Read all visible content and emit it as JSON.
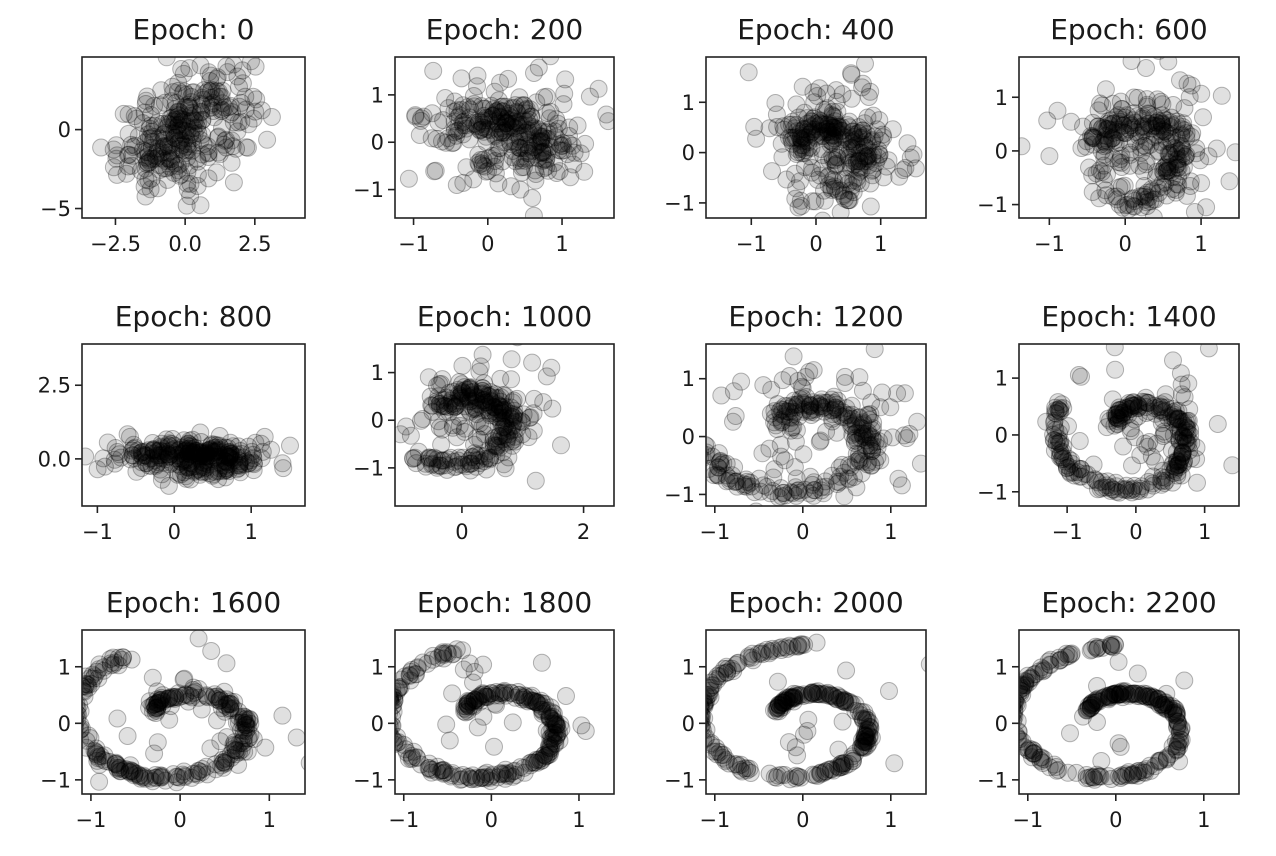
{
  "figure": {
    "marker_color": "#000000",
    "marker_alpha": 0.12
  },
  "chart_data": [
    {
      "type": "scatter",
      "title": "Epoch: 0",
      "xlim": [
        -3.7,
        4.3
      ],
      "ylim": [
        -5.6,
        4.6
      ],
      "xticks": [
        -2.5,
        0.0,
        2.5
      ],
      "xtick_labels": [
        "−2.5",
        "0.0",
        "2.5"
      ],
      "yticks": [
        -5,
        0
      ],
      "ytick_labels": [
        "−5",
        "0"
      ],
      "distribution": {
        "shape": "gaussian",
        "center": [
          0.0,
          0.0
        ],
        "spread": [
          1.2,
          1.9
        ],
        "correlation": 0.45,
        "n": 300
      }
    },
    {
      "type": "scatter",
      "title": "Epoch: 200",
      "xlim": [
        -1.25,
        1.7
      ],
      "ylim": [
        -1.6,
        1.8
      ],
      "xticks": [
        -1,
        0,
        1
      ],
      "xtick_labels": [
        "−1",
        "0",
        "1"
      ],
      "yticks": [
        -1,
        0,
        1
      ],
      "ytick_labels": [
        "−1",
        "0",
        "1"
      ],
      "distribution": {
        "shape": "spiral",
        "stage": 0.1,
        "n": 300
      }
    },
    {
      "type": "scatter",
      "title": "Epoch: 400",
      "xlim": [
        -1.7,
        1.7
      ],
      "ylim": [
        -1.3,
        1.9
      ],
      "xticks": [
        -1,
        0,
        1
      ],
      "xtick_labels": [
        "−1",
        "0",
        "1"
      ],
      "yticks": [
        -1,
        0,
        1
      ],
      "ytick_labels": [
        "−1",
        "0",
        "1"
      ],
      "distribution": {
        "shape": "spiral",
        "stage": 0.2,
        "n": 300
      }
    },
    {
      "type": "scatter",
      "title": "Epoch: 600",
      "xlim": [
        -1.4,
        1.5
      ],
      "ylim": [
        -1.25,
        1.75
      ],
      "xticks": [
        -1,
        0,
        1
      ],
      "xtick_labels": [
        "−1",
        "0",
        "1"
      ],
      "yticks": [
        -1,
        0,
        1
      ],
      "ytick_labels": [
        "−1",
        "0",
        "1"
      ],
      "distribution": {
        "shape": "spiral",
        "stage": 0.3,
        "n": 300
      }
    },
    {
      "type": "scatter",
      "title": "Epoch: 800",
      "xlim": [
        -1.2,
        1.7
      ],
      "ylim": [
        -1.6,
        3.9
      ],
      "xticks": [
        -1,
        0,
        1
      ],
      "xtick_labels": [
        "−1",
        "0",
        "1"
      ],
      "yticks": [
        0.0,
        2.5
      ],
      "ytick_labels": [
        "0.0",
        "2.5"
      ],
      "distribution": {
        "shape": "spiral",
        "stage": 0.25,
        "squash": 0.55,
        "n": 300
      }
    },
    {
      "type": "scatter",
      "title": "Epoch: 1000",
      "xlim": [
        -1.1,
        2.5
      ],
      "ylim": [
        -1.8,
        1.6
      ],
      "xticks": [
        0,
        2
      ],
      "xtick_labels": [
        "0",
        "2"
      ],
      "yticks": [
        -1,
        0,
        1
      ],
      "ytick_labels": [
        "−1",
        "0",
        "1"
      ],
      "distribution": {
        "shape": "spiral",
        "stage": 0.45,
        "n": 300
      }
    },
    {
      "type": "scatter",
      "title": "Epoch: 1200",
      "xlim": [
        -1.1,
        1.4
      ],
      "ylim": [
        -1.2,
        1.6
      ],
      "xticks": [
        -1,
        0,
        1
      ],
      "xtick_labels": [
        "−1",
        "0",
        "1"
      ],
      "yticks": [
        -1,
        0,
        1
      ],
      "ytick_labels": [
        "−1",
        "0",
        "1"
      ],
      "distribution": {
        "shape": "spiral",
        "stage": 0.6,
        "n": 300
      }
    },
    {
      "type": "scatter",
      "title": "Epoch: 1400",
      "xlim": [
        -1.7,
        1.5
      ],
      "ylim": [
        -1.25,
        1.6
      ],
      "xticks": [
        -1,
        0,
        1
      ],
      "xtick_labels": [
        "−1",
        "0",
        "1"
      ],
      "yticks": [
        -1,
        0,
        1
      ],
      "ytick_labels": [
        "−1",
        "0",
        "1"
      ],
      "distribution": {
        "shape": "spiral",
        "stage": 0.75,
        "n": 300
      }
    },
    {
      "type": "scatter",
      "title": "Epoch: 1600",
      "xlim": [
        -1.1,
        1.4
      ],
      "ylim": [
        -1.25,
        1.65
      ],
      "xticks": [
        -1,
        0,
        1
      ],
      "xtick_labels": [
        "−1",
        "0",
        "1"
      ],
      "yticks": [
        -1,
        0,
        1
      ],
      "ytick_labels": [
        "−1",
        "0",
        "1"
      ],
      "distribution": {
        "shape": "spiral",
        "stage": 0.9,
        "n": 300
      }
    },
    {
      "type": "scatter",
      "title": "Epoch: 1800",
      "xlim": [
        -1.1,
        1.4
      ],
      "ylim": [
        -1.25,
        1.65
      ],
      "xticks": [
        -1,
        0,
        1
      ],
      "xtick_labels": [
        "−1",
        "0",
        "1"
      ],
      "yticks": [
        -1,
        0,
        1
      ],
      "ytick_labels": [
        "−1",
        "0",
        "1"
      ],
      "distribution": {
        "shape": "spiral",
        "stage": 0.95,
        "n": 300
      }
    },
    {
      "type": "scatter",
      "title": "Epoch: 2000",
      "xlim": [
        -1.1,
        1.4
      ],
      "ylim": [
        -1.25,
        1.65
      ],
      "xticks": [
        -1,
        0,
        1
      ],
      "xtick_labels": [
        "−1",
        "0",
        "1"
      ],
      "yticks": [
        -1,
        0,
        1
      ],
      "ytick_labels": [
        "−1",
        "0",
        "1"
      ],
      "distribution": {
        "shape": "spiral",
        "stage": 1.0,
        "n": 300
      }
    },
    {
      "type": "scatter",
      "title": "Epoch: 2200",
      "xlim": [
        -1.1,
        1.4
      ],
      "ylim": [
        -1.25,
        1.65
      ],
      "xticks": [
        -1,
        0,
        1
      ],
      "xtick_labels": [
        "−1",
        "0",
        "1"
      ],
      "yticks": [
        -1,
        0,
        1
      ],
      "ytick_labels": [
        "−1",
        "0",
        "1"
      ],
      "distribution": {
        "shape": "spiral",
        "stage": 1.0,
        "n": 300
      }
    }
  ]
}
